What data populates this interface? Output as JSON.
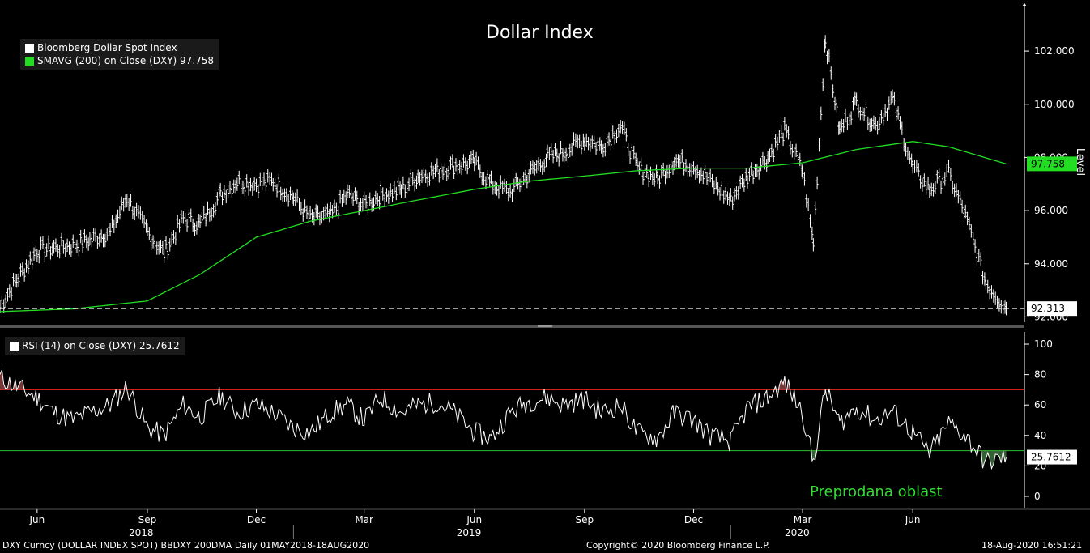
{
  "colors": {
    "background": "#000000",
    "price": "#ffffff",
    "sma": "#22dd22",
    "overbought_line": "#cc2222",
    "oversold_line": "#22aa22",
    "annotation": "#33dd33",
    "sma_tag": "#22dd22"
  },
  "chart_data": [
    {
      "type": "line",
      "title": "Dollar Index",
      "ylabel": "Level",
      "ylim": [
        91.8,
        103.8
      ],
      "yticks": [
        "92.000",
        "94.000",
        "96.000",
        "98.000",
        "100.000",
        "102.000"
      ],
      "ytick_values": [
        92,
        94,
        96,
        98,
        100,
        102
      ],
      "x_month_labels": [
        "Jun",
        "Sep",
        "Dec",
        "Mar",
        "Jun",
        "Sep",
        "Dec",
        "Mar",
        "Jun"
      ],
      "x_year_labels": [
        "2018",
        "2019",
        "2020"
      ],
      "legend": [
        "Bloomberg Dollar Spot Index",
        "SMAVG (200)  on Close (DXY) 97.758"
      ],
      "last_price_label": "92.313",
      "sma_label": "97.758",
      "series": [
        {
          "name": "Bloomberg Dollar Spot Index",
          "style": "bars",
          "x": [
            "2018-05-01",
            "2018-05-15",
            "2018-06-01",
            "2018-06-15",
            "2018-07-01",
            "2018-07-15",
            "2018-08-01",
            "2018-08-15",
            "2018-09-01",
            "2018-09-15",
            "2018-10-01",
            "2018-10-15",
            "2018-11-01",
            "2018-11-15",
            "2018-12-01",
            "2018-12-15",
            "2019-01-01",
            "2019-01-15",
            "2019-02-01",
            "2019-02-15",
            "2019-03-01",
            "2019-03-15",
            "2019-04-01",
            "2019-04-15",
            "2019-05-01",
            "2019-05-15",
            "2019-06-01",
            "2019-06-15",
            "2019-07-01",
            "2019-07-15",
            "2019-08-01",
            "2019-08-15",
            "2019-09-01",
            "2019-09-15",
            "2019-10-01",
            "2019-10-15",
            "2019-11-01",
            "2019-11-15",
            "2019-12-01",
            "2019-12-15",
            "2020-01-01",
            "2020-01-15",
            "2020-02-01",
            "2020-02-15",
            "2020-03-01",
            "2020-03-10",
            "2020-03-20",
            "2020-04-01",
            "2020-04-15",
            "2020-05-01",
            "2020-05-15",
            "2020-06-01",
            "2020-06-15",
            "2020-07-01",
            "2020-07-15",
            "2020-08-01",
            "2020-08-18"
          ],
          "values": [
            92.4,
            93.4,
            94.5,
            94.6,
            94.7,
            94.9,
            95.2,
            96.5,
            95.2,
            94.4,
            95.7,
            95.5,
            96.6,
            97.1,
            97.0,
            97.1,
            96.5,
            95.7,
            95.8,
            96.6,
            96.2,
            96.6,
            96.8,
            97.3,
            97.5,
            97.7,
            97.8,
            97.0,
            96.7,
            97.3,
            98.0,
            98.2,
            98.7,
            98.4,
            99.2,
            97.6,
            97.2,
            97.9,
            97.7,
            97.1,
            96.4,
            97.3,
            98.0,
            99.0,
            97.5,
            94.8,
            102.5,
            99.0,
            100.1,
            99.2,
            100.2,
            97.6,
            96.8,
            97.4,
            95.8,
            93.3,
            92.313
          ]
        },
        {
          "name": "SMAVG (200)",
          "x": [
            "2018-05-01",
            "2018-07-01",
            "2018-09-01",
            "2018-10-15",
            "2018-12-01",
            "2019-01-15",
            "2019-03-01",
            "2019-04-15",
            "2019-06-01",
            "2019-07-15",
            "2019-09-01",
            "2019-10-15",
            "2019-12-01",
            "2020-01-15",
            "2020-03-01",
            "2020-04-15",
            "2020-06-01",
            "2020-07-01",
            "2020-08-18"
          ],
          "values": [
            92.2,
            92.3,
            92.6,
            93.6,
            95.0,
            95.6,
            96.0,
            96.4,
            96.8,
            97.1,
            97.3,
            97.5,
            97.6,
            97.6,
            97.8,
            98.3,
            98.6,
            98.4,
            97.758
          ]
        }
      ]
    },
    {
      "type": "line",
      "legend": [
        "RSI (14)  on Close (DXY) 25.7612"
      ],
      "ylim": [
        -8,
        108
      ],
      "yticks": [
        "0",
        "20",
        "40",
        "60",
        "80",
        "100"
      ],
      "ytick_values": [
        0,
        20,
        40,
        60,
        80,
        100
      ],
      "overbought": 70,
      "oversold": 30,
      "last_label": "25.7612",
      "annotation": "Preprodana oblast",
      "series": [
        {
          "name": "RSI (14)",
          "x": [
            "2018-05-01",
            "2018-05-15",
            "2018-06-01",
            "2018-06-15",
            "2018-07-01",
            "2018-07-15",
            "2018-08-01",
            "2018-08-15",
            "2018-09-01",
            "2018-09-15",
            "2018-10-01",
            "2018-10-15",
            "2018-11-01",
            "2018-11-15",
            "2018-12-01",
            "2018-12-15",
            "2019-01-01",
            "2019-01-15",
            "2019-02-01",
            "2019-02-15",
            "2019-03-01",
            "2019-03-15",
            "2019-04-01",
            "2019-04-15",
            "2019-05-01",
            "2019-05-15",
            "2019-06-01",
            "2019-06-15",
            "2019-07-01",
            "2019-07-15",
            "2019-08-01",
            "2019-08-15",
            "2019-09-01",
            "2019-09-15",
            "2019-10-01",
            "2019-10-15",
            "2019-11-01",
            "2019-11-15",
            "2019-12-01",
            "2019-12-15",
            "2020-01-01",
            "2020-01-15",
            "2020-02-01",
            "2020-02-15",
            "2020-03-01",
            "2020-03-10",
            "2020-03-20",
            "2020-04-01",
            "2020-04-15",
            "2020-05-01",
            "2020-05-15",
            "2020-06-01",
            "2020-06-15",
            "2020-07-01",
            "2020-07-15",
            "2020-08-01",
            "2020-08-18"
          ],
          "values": [
            78,
            72,
            65,
            55,
            50,
            55,
            60,
            72,
            45,
            40,
            60,
            52,
            66,
            55,
            60,
            55,
            45,
            42,
            55,
            60,
            50,
            65,
            55,
            60,
            62,
            55,
            42,
            38,
            55,
            62,
            65,
            60,
            64,
            55,
            60,
            42,
            38,
            55,
            50,
            40,
            36,
            58,
            65,
            75,
            55,
            22,
            70,
            48,
            58,
            50,
            56,
            42,
            28,
            48,
            40,
            22,
            25.7612
          ]
        }
      ]
    }
  ],
  "footer": {
    "left": "DXY Curncy (DOLLAR INDEX SPOT) BBDXY 200DMA  Daily 01MAY2018-18AUG2020",
    "center": "Copyright© 2020 Bloomberg Finance L.P.",
    "right": "18-Aug-2020 16:51:21"
  }
}
